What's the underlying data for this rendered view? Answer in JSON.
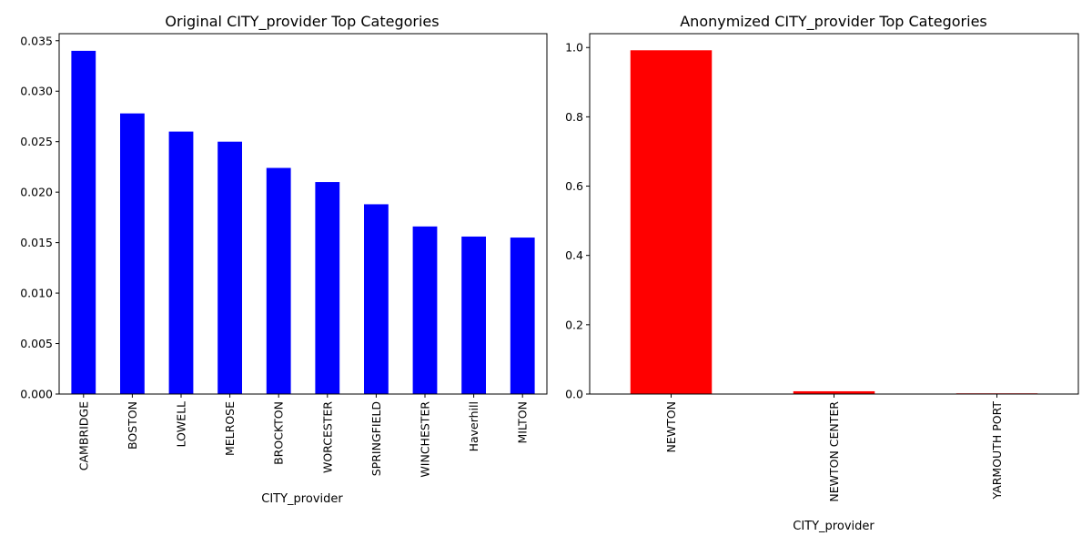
{
  "chart_data": [
    {
      "type": "bar",
      "title": "Original CITY_provider Top Categories",
      "xlabel": "CITY_provider",
      "ylabel": "",
      "color": "#0000ff",
      "categories": [
        "CAMBRIDGE",
        "BOSTON",
        "LOWELL",
        "MELROSE",
        "BROCKTON",
        "WORCESTER",
        "SPRINGFIELD",
        "WINCHESTER",
        "Haverhill",
        "MILTON"
      ],
      "values": [
        0.034,
        0.0278,
        0.026,
        0.025,
        0.0224,
        0.021,
        0.0188,
        0.0166,
        0.0156,
        0.0155
      ],
      "ylim": [
        0,
        0.0357
      ],
      "yticks": [
        0.0,
        0.005,
        0.01,
        0.015,
        0.02,
        0.025,
        0.03,
        0.035
      ],
      "ytick_labels": [
        "0.000",
        "0.005",
        "0.010",
        "0.015",
        "0.020",
        "0.025",
        "0.030",
        "0.035"
      ],
      "grid": false,
      "legend": "none"
    },
    {
      "type": "bar",
      "title": "Anonymized CITY_provider Top Categories",
      "xlabel": "CITY_provider",
      "ylabel": "",
      "color": "#ff0000",
      "categories": [
        "NEWTON",
        "NEWTON CENTER",
        "YARMOUTH PORT"
      ],
      "values": [
        0.992,
        0.008,
        0.002
      ],
      "ylim": [
        0,
        1.04
      ],
      "yticks": [
        0.0,
        0.2,
        0.4,
        0.6,
        0.8,
        1.0
      ],
      "ytick_labels": [
        "0.0",
        "0.2",
        "0.4",
        "0.6",
        "0.8",
        "1.0"
      ],
      "grid": false,
      "legend": "none"
    }
  ]
}
